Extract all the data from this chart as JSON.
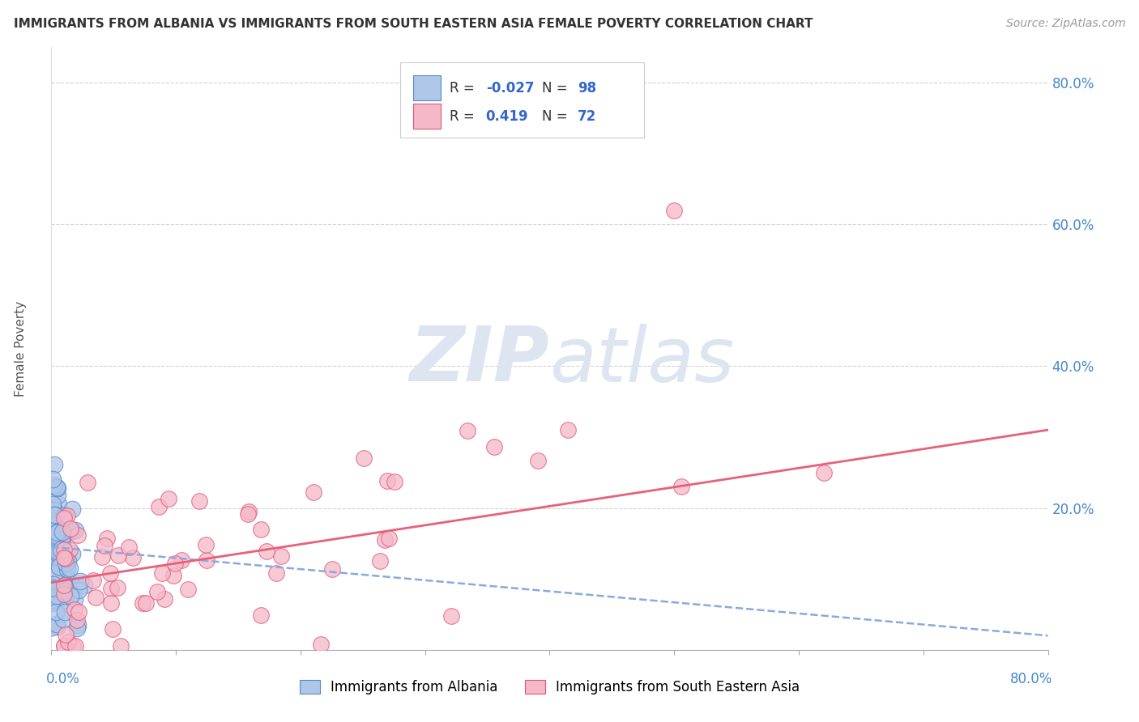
{
  "title": "IMMIGRANTS FROM ALBANIA VS IMMIGRANTS FROM SOUTH EASTERN ASIA FEMALE POVERTY CORRELATION CHART",
  "source": "Source: ZipAtlas.com",
  "ylabel": "Female Poverty",
  "xlim": [
    0.0,
    0.8
  ],
  "ylim": [
    0.0,
    0.85
  ],
  "albania_color": "#aec6e8",
  "sea_color": "#f5b8c8",
  "albania_edge": "#5588cc",
  "sea_edge": "#e05575",
  "trend_albania_color": "#88aadd",
  "trend_sea_color": "#e8607a",
  "background_color": "#ffffff",
  "watermark_color": "#dde6f0",
  "trend_alb_x0": 0.0,
  "trend_alb_y0": 0.145,
  "trend_alb_x1": 0.8,
  "trend_alb_y1": 0.02,
  "trend_sea_x0": 0.0,
  "trend_sea_y0": 0.095,
  "trend_sea_x1": 0.8,
  "trend_sea_y1": 0.31
}
